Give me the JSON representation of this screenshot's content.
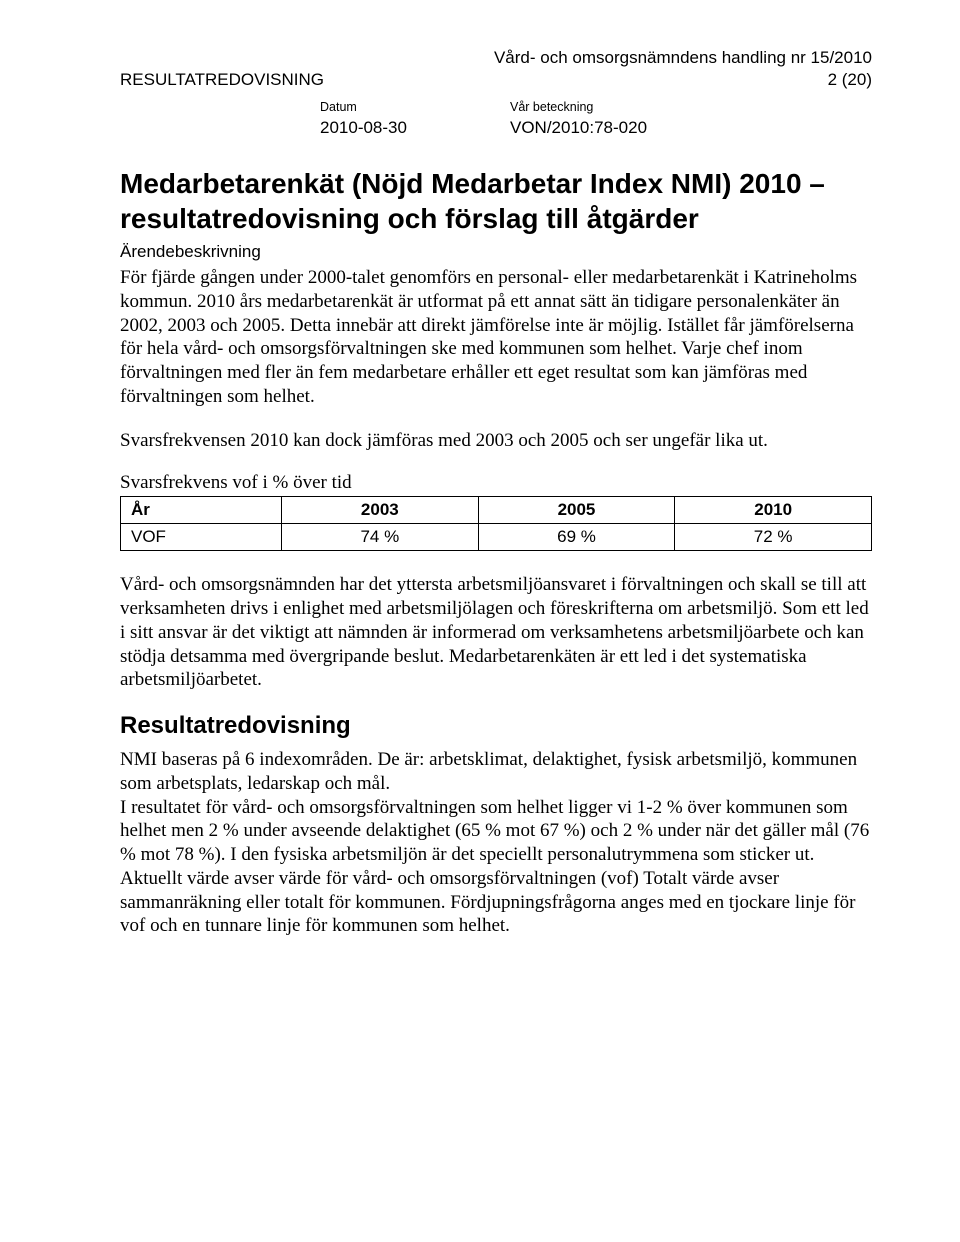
{
  "header": {
    "top_line": "Vård- och omsorgsnämndens handling nr 15/2010",
    "left": "RESULTATREDOVISNING",
    "right_page": "2 (20)",
    "meta": {
      "date_label": "Datum",
      "ref_label": "Vår beteckning",
      "date_value": "2010-08-30",
      "ref_value": "VON/2010:78-020"
    }
  },
  "title": "Medarbetarenkät (Nöjd Medarbetar Index NMI) 2010 – resultatredovisning och förslag till åtgärder",
  "subheading": "Ärendebeskrivning",
  "para1": "För fjärde gången under 2000-talet genomförs en personal- eller medarbetarenkät i Katrineholms kommun. 2010 års medarbetarenkät är utformat på ett annat sätt än tidigare personalenkäter än 2002, 2003 och 2005. Detta innebär att direkt jämförelse inte är möjlig. Istället får jämförelserna för hela vård- och omsorgsförvaltningen ske med kommunen som helhet. Varje chef inom förvaltningen med fler än fem medarbetare erhåller ett eget resultat som kan jämföras med förvaltningen som helhet.",
  "para2": "Svarsfrekvensen 2010 kan dock jämföras med 2003 och 2005 och ser ungefär lika ut.",
  "freq_table": {
    "caption": "Svarsfrekvens vof i % över tid",
    "columns": [
      "År",
      "2003",
      "2005",
      "2010"
    ],
    "rows": [
      [
        "VOF",
        "74 %",
        "69 %",
        "72 %"
      ]
    ]
  },
  "para3": "Vård- och omsorgsnämnden har det yttersta arbetsmiljöansvaret i förvaltningen och skall se till att verksamheten drivs i enlighet med arbetsmiljölagen och föreskrifterna om arbetsmiljö. Som ett led i sitt ansvar är det viktigt att nämnden är informerad om verksamhetens arbetsmiljöarbete och kan stödja detsamma med övergripande beslut. Medarbetarenkäten är ett led i det systematiska arbetsmiljöarbetet.",
  "section_heading": "Resultatredovisning",
  "para4": "NMI baseras på 6 indexområden. De är: arbetsklimat, delaktighet, fysisk arbetsmiljö, kommunen som arbetsplats, ledarskap och mål.",
  "para5": "I resultatet för vård- och omsorgsförvaltningen som helhet ligger vi 1-2 % över kommunen som helhet men 2 % under avseende delaktighet (65 % mot 67 %) och 2 % under när det gäller mål (76 % mot 78 %). I den fysiska arbetsmiljön är det speciellt personalutrymmena som sticker ut. Aktuellt värde avser värde för vård- och omsorgsförvaltningen (vof) Totalt värde avser sammanräkning eller totalt för kommunen. Fördjupningsfrågorna anges med en tjockare linje för vof och en tunnare linje för kommunen som helhet."
}
